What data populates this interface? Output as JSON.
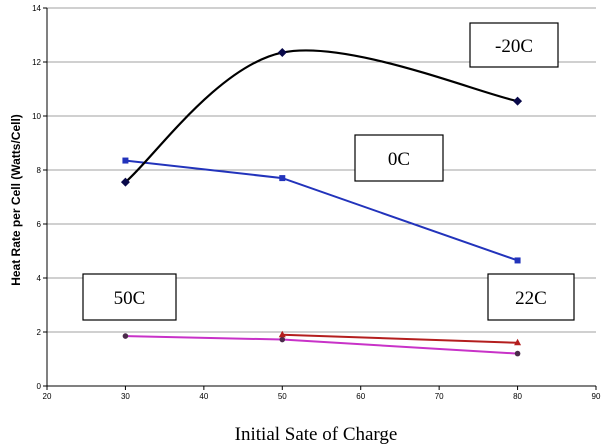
{
  "chart_data": {
    "type": "line",
    "title": "",
    "xlabel": "Initial Sate of Charge",
    "ylabel": "Heat Rate per Cell (Watts/Cell)",
    "xlim": [
      20,
      90
    ],
    "ylim": [
      0,
      14
    ],
    "x_ticks": [
      20,
      30,
      40,
      50,
      60,
      70,
      80,
      90
    ],
    "x_tick_labels": [
      "20",
      "30",
      "40",
      "50",
      "60",
      "70",
      "80",
      "90"
    ],
    "y_ticks": [
      0,
      2,
      4,
      6,
      8,
      10,
      12,
      14
    ],
    "grid": "horizontal",
    "legend": "none",
    "series": [
      {
        "name": "-20C",
        "color": "#000000",
        "marker_color": "#0a0a4a",
        "marker": "diamond",
        "smooth": true,
        "points": [
          [
            30,
            7.55
          ],
          [
            50,
            12.35
          ],
          [
            80,
            10.55
          ]
        ]
      },
      {
        "name": "0C",
        "color": "#2233bb",
        "marker_color": "#2233bb",
        "marker": "square",
        "smooth": false,
        "points": [
          [
            30,
            8.35
          ],
          [
            50,
            7.7
          ],
          [
            80,
            4.65
          ]
        ]
      },
      {
        "name": "22C",
        "color": "#b41e1e",
        "marker_color": "#b41e1e",
        "marker": "triangle",
        "smooth": false,
        "points": [
          [
            50,
            1.9
          ],
          [
            80,
            1.6
          ]
        ]
      },
      {
        "name": "50C",
        "color": "#c832c8",
        "marker_color": "#4a2a4a",
        "marker": "circle",
        "smooth": false,
        "points": [
          [
            30,
            1.85
          ],
          [
            50,
            1.72
          ],
          [
            80,
            1.2
          ]
        ]
      }
    ],
    "annotations": [
      {
        "label": "-20C",
        "anchor": "top-right"
      },
      {
        "label": "0C",
        "anchor": "center-right"
      },
      {
        "label": "50C",
        "anchor": "bottom-left"
      },
      {
        "label": "22C",
        "anchor": "bottom-right"
      }
    ]
  }
}
